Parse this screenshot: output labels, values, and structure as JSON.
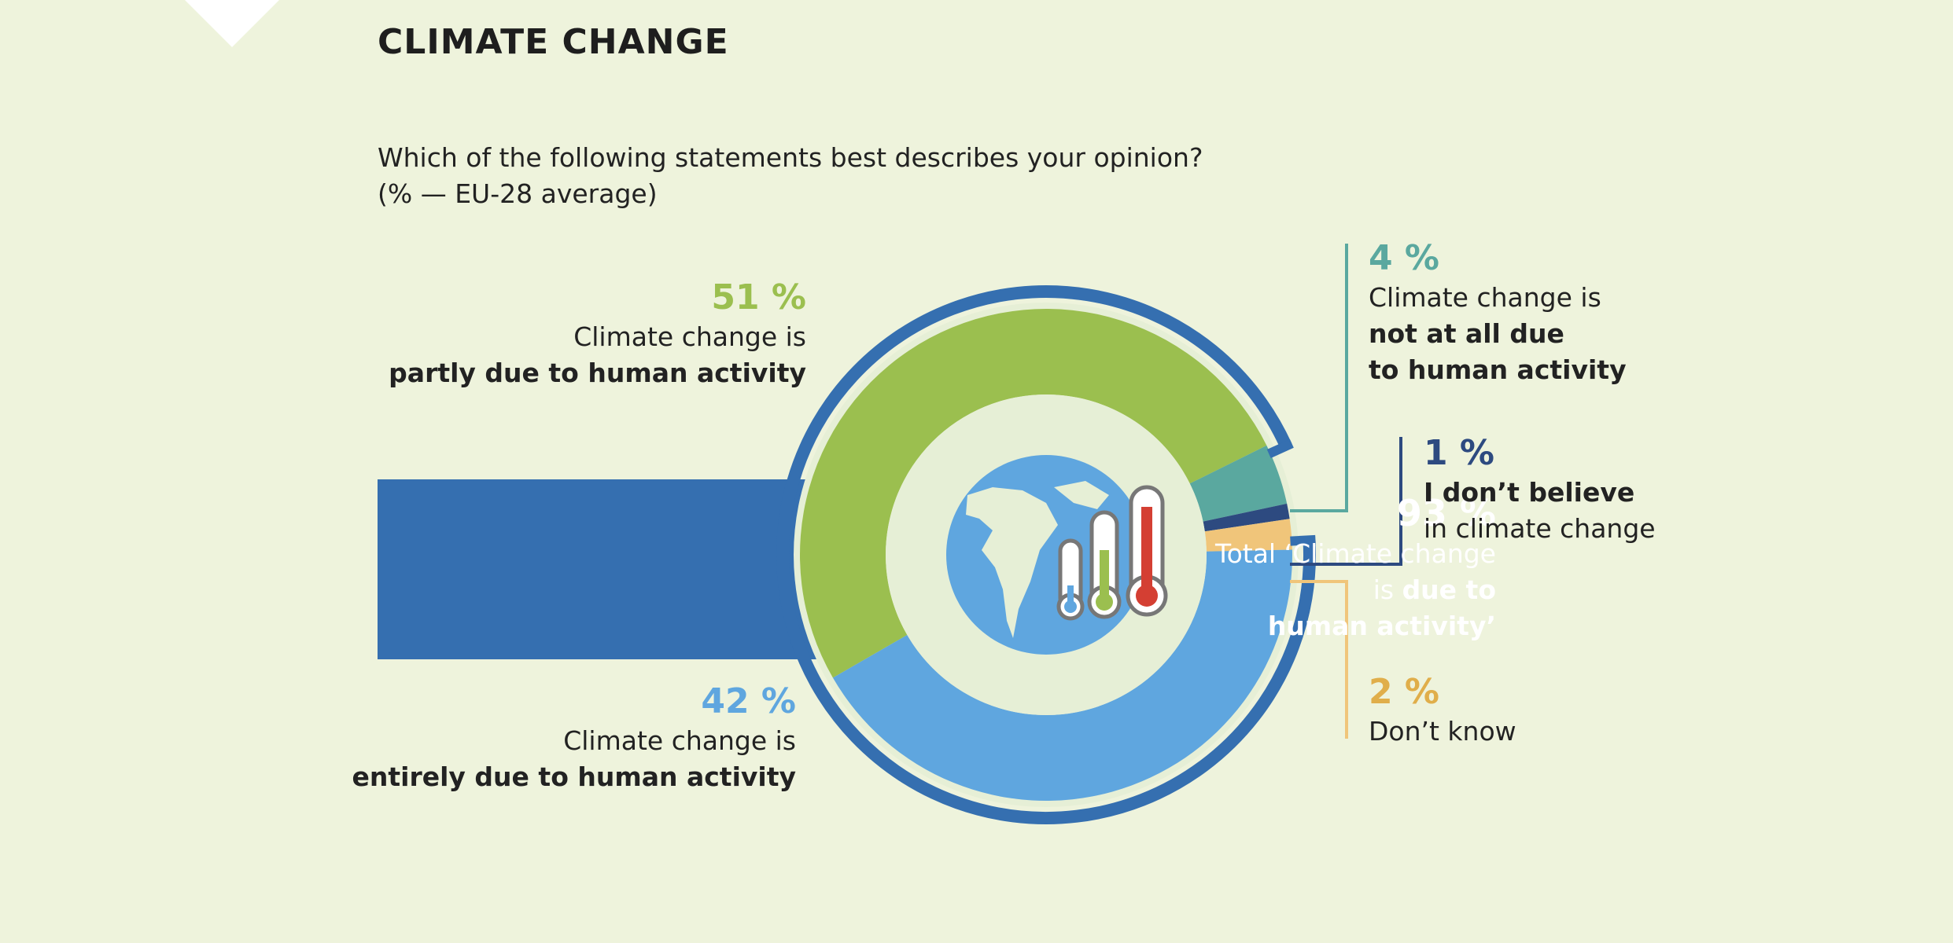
{
  "title": "CLIMATE CHANGE",
  "question": {
    "line1": "Which of the following statements best describes your opinion?",
    "line2": "(% — EU-28 average)"
  },
  "labels": {
    "partly": {
      "pct": "51 %",
      "line1": "Climate change is",
      "line2": "partly due to human activity"
    },
    "entirely": {
      "pct": "42 %",
      "line1": "Climate change is",
      "line2": "entirely due to human activity"
    },
    "not_at_all": {
      "pct": "4 %",
      "line1": "Climate change is",
      "line2": "not at all due",
      "line3": "to human activity"
    },
    "dont_believe": {
      "pct": "1 %",
      "line1": "I don’t believe",
      "line2": "in climate change"
    },
    "dont_know": {
      "pct": "2 %",
      "line1": "Don’t know"
    },
    "total": {
      "pct": "93 %",
      "line1": "Total ‘Climate change",
      "line2a": "is ",
      "line2b": "due to",
      "line3": "human activity’"
    }
  },
  "chart_data": {
    "type": "pie",
    "style": "donut",
    "title": "CLIMATE CHANGE",
    "subtitle": "Which of the following statements best describes your opinion? (% — EU-28 average)",
    "slices": [
      {
        "label": "Climate change is partly due to human activity",
        "value": 51,
        "color": "#9bbf4f"
      },
      {
        "label": "Climate change is not at all due to human activity",
        "value": 4,
        "color": "#5aa89f"
      },
      {
        "label": "I don’t believe in climate change",
        "value": 1,
        "color": "#2d4a80"
      },
      {
        "label": "Don’t know",
        "value": 2,
        "color": "#f0c57a"
      },
      {
        "label": "Climate change is entirely due to human activity",
        "value": 42,
        "color": "#5fa6df"
      }
    ],
    "group_total": {
      "label": "Total ‘Climate change is due to human activity’",
      "value": 93,
      "members": [
        "partly",
        "entirely"
      ],
      "color": "#356fb0"
    }
  },
  "colors": {
    "background": "#eef3dc",
    "inner_disc": "#e6efd6",
    "globe": "#5fa6df",
    "thermometer_frame": "#777777",
    "thermo_blue": "#5fa6df",
    "thermo_green": "#9bbf4f",
    "thermo_red": "#d43f33"
  },
  "icons": {
    "center": "globe-thermometers-icon"
  }
}
